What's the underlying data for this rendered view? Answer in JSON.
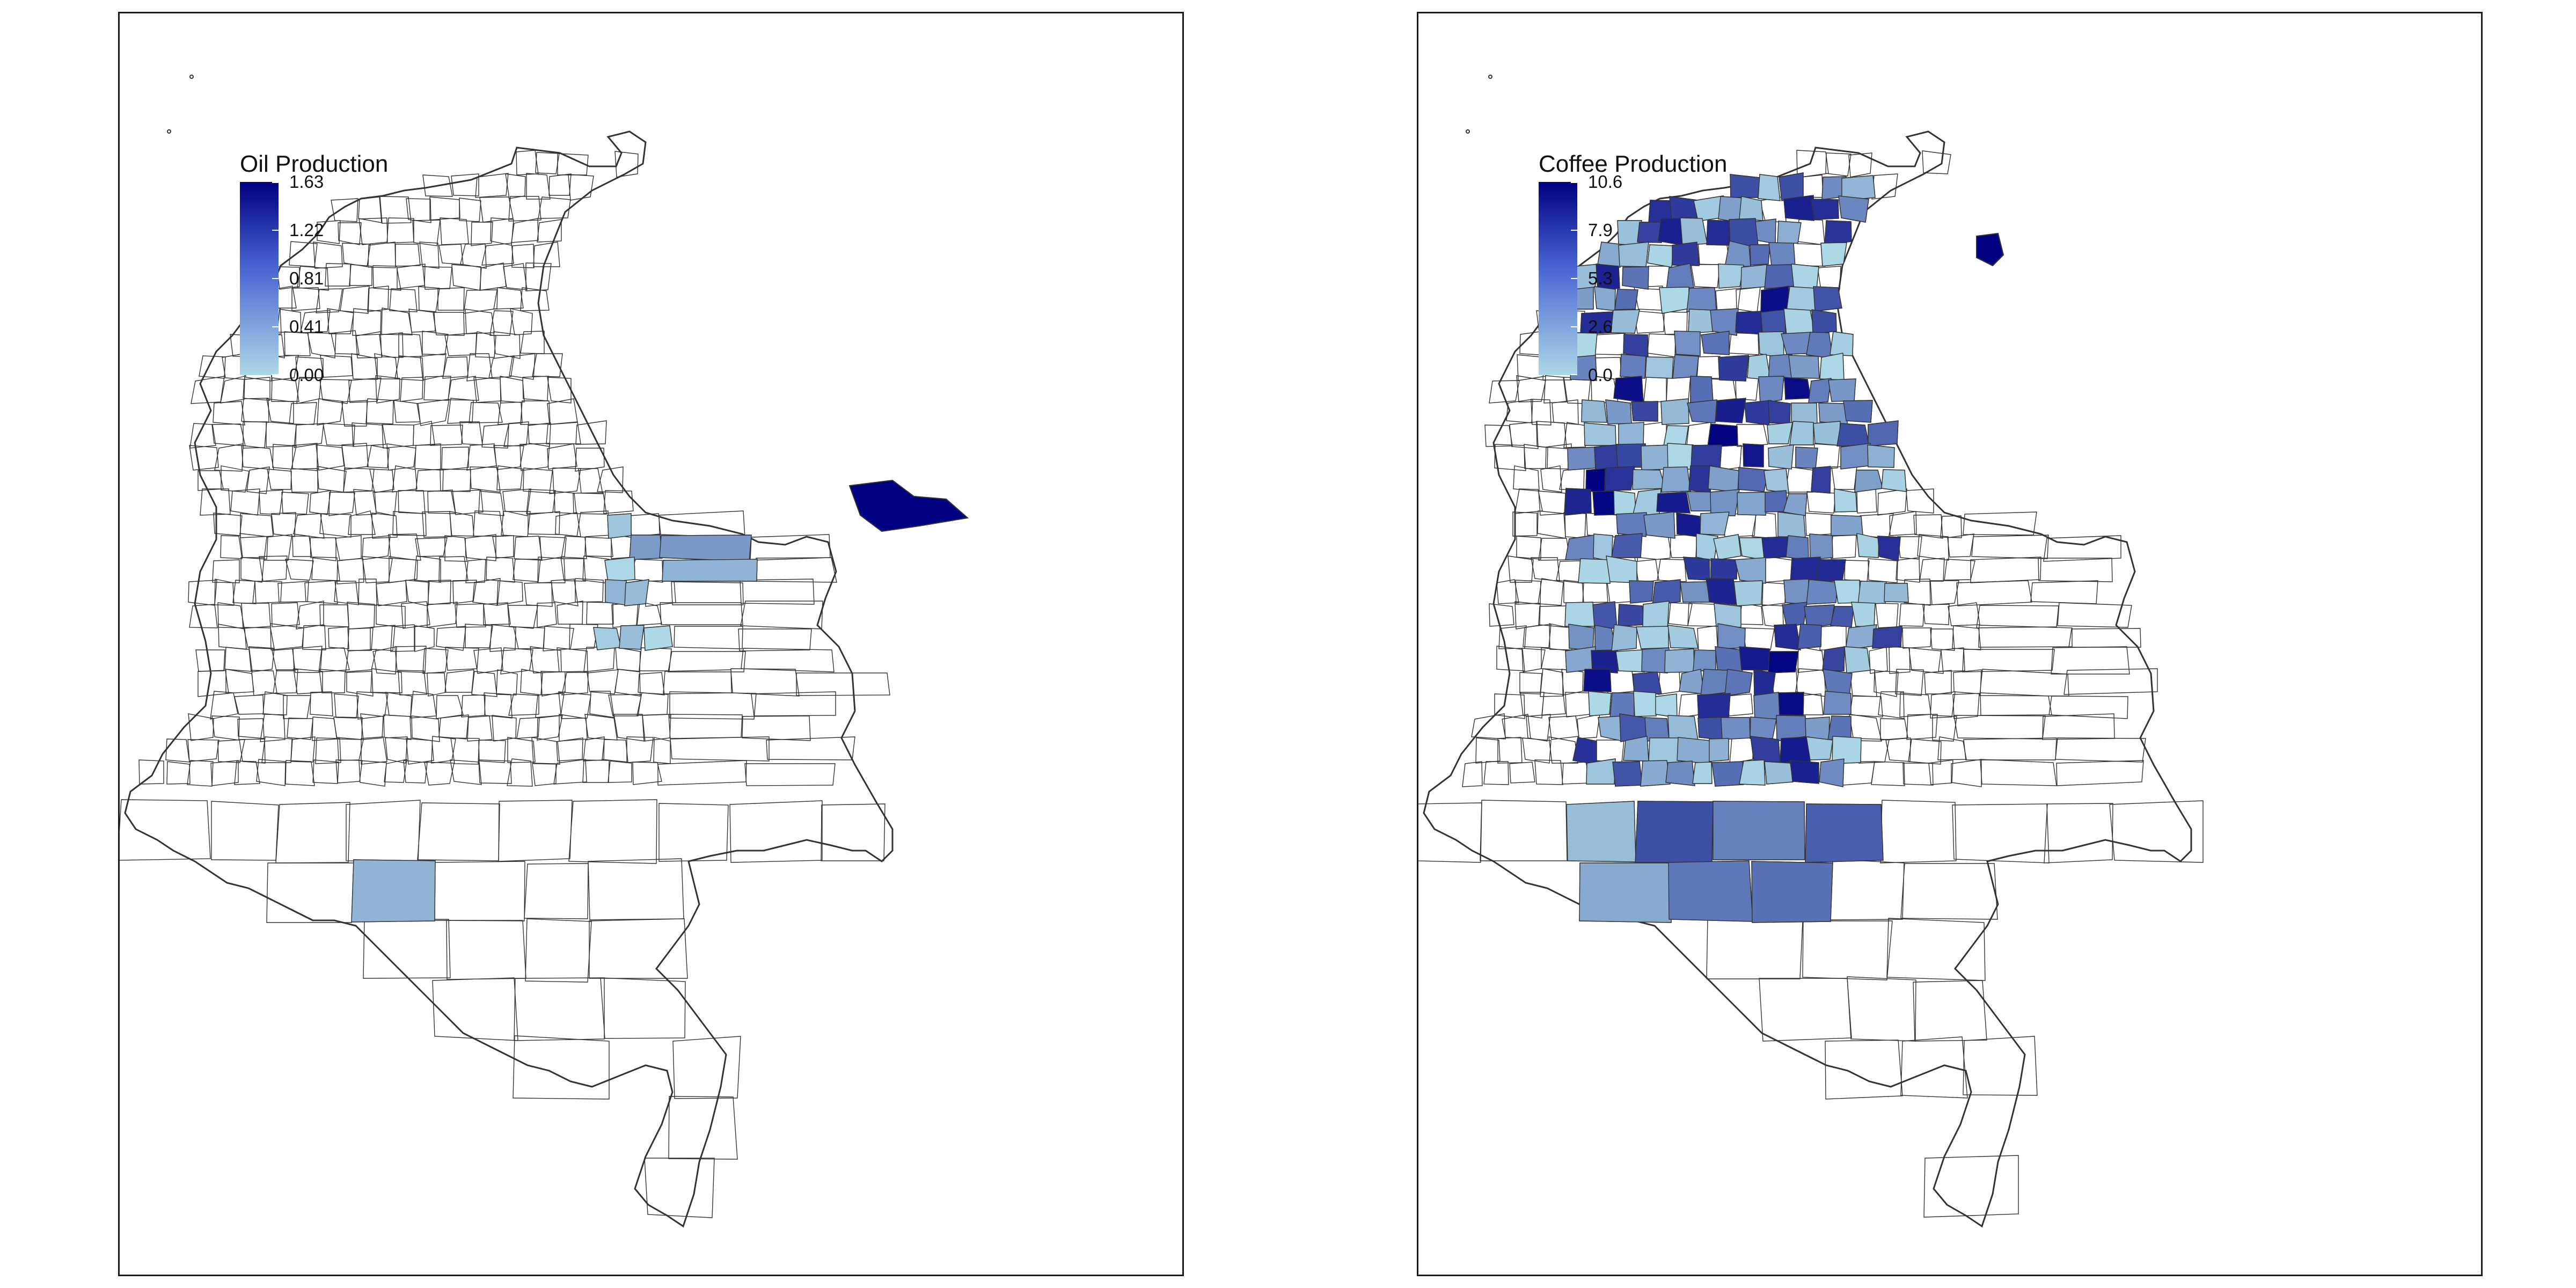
{
  "maps": [
    {
      "legend_title": "Oil Production",
      "legend_ticks": [
        "1.63",
        "1.22",
        "0.81",
        "0.41",
        "0.00"
      ],
      "scale": {
        "min": 0.0,
        "max": 1.63,
        "low_color": "#add8e6",
        "high_color": "#000080"
      },
      "highlight": "northeast-border-region-max"
    },
    {
      "legend_title": "Coffee Production",
      "legend_ticks": [
        "10.6",
        "7.9",
        "5.3",
        "2.6",
        "0.0"
      ],
      "scale": {
        "min": 0.0,
        "max": 10.6,
        "low_color": "#add8e6",
        "high_color": "#000080"
      },
      "highlight": "andean-coffee-belt"
    }
  ],
  "colors": {
    "outline": "#333333",
    "frame": "#1a1a1a",
    "no_data": "#ffffff"
  }
}
